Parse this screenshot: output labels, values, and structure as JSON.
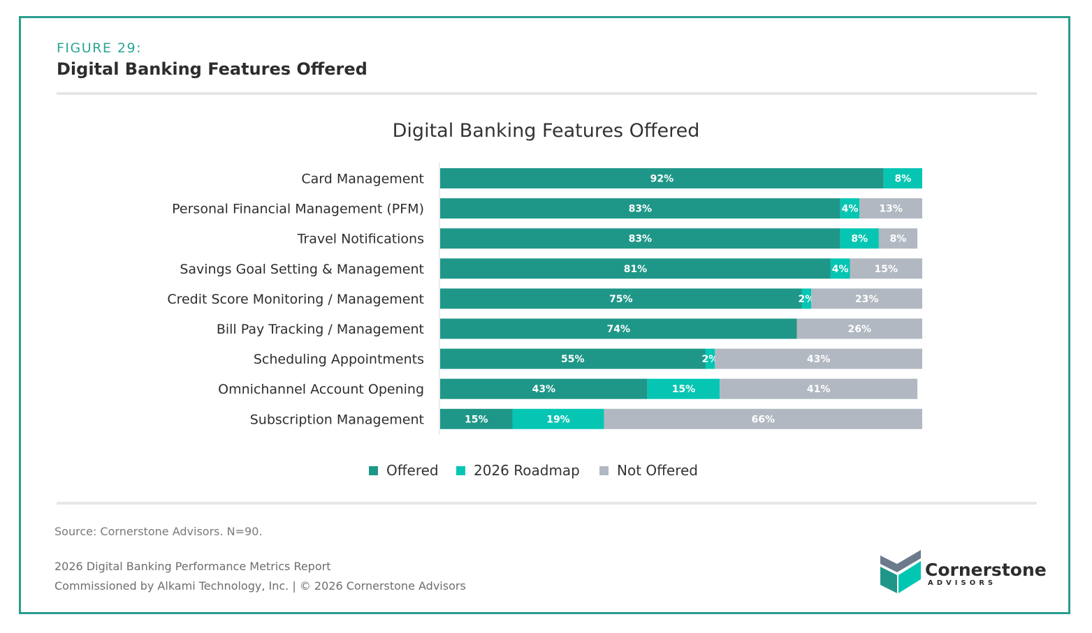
{
  "figure": {
    "label": "FIGURE 29:",
    "title": "Digital Banking Features Offered"
  },
  "chart_data": {
    "type": "bar",
    "orientation": "horizontal",
    "stacked": true,
    "title": "Digital Banking Features Offered",
    "xlabel": "",
    "ylabel": "",
    "xlim": [
      0,
      100
    ],
    "grid": false,
    "legend_position": "bottom",
    "categories": [
      "Card Management",
      "Personal Financial Management (PFM)",
      "Travel Notifications",
      "Savings Goal Setting & Management",
      "Credit Score Monitoring / Management",
      "Bill Pay Tracking / Management",
      "Scheduling Appointments",
      "Omnichannel Account Opening",
      "Subscription Management"
    ],
    "series": [
      {
        "name": "Offered",
        "color": "#1f9788",
        "values": [
          92,
          83,
          83,
          81,
          75,
          74,
          55,
          43,
          15
        ]
      },
      {
        "name": "2026 Roadmap",
        "color": "#06c6b3",
        "values": [
          8,
          4,
          8,
          4,
          2,
          0,
          2,
          15,
          19
        ]
      },
      {
        "name": "Not Offered",
        "color": "#b1b8c1",
        "values": [
          0,
          13,
          8,
          15,
          23,
          26,
          43,
          41,
          66
        ]
      }
    ],
    "value_suffix": "%"
  },
  "footer": {
    "source": "Source: Cornerstone Advisors. N=90.",
    "report": "2026 Digital Banking Performance Metrics Report",
    "commission": "Commissioned by Alkami Technology, Inc.  |  © 2026 Cornerstone Advisors"
  },
  "logo": {
    "name": "Cornerstone",
    "sub": "ADVISORS",
    "colors": [
      "#00c7b2",
      "#1f9788",
      "#6b7a8c"
    ]
  }
}
